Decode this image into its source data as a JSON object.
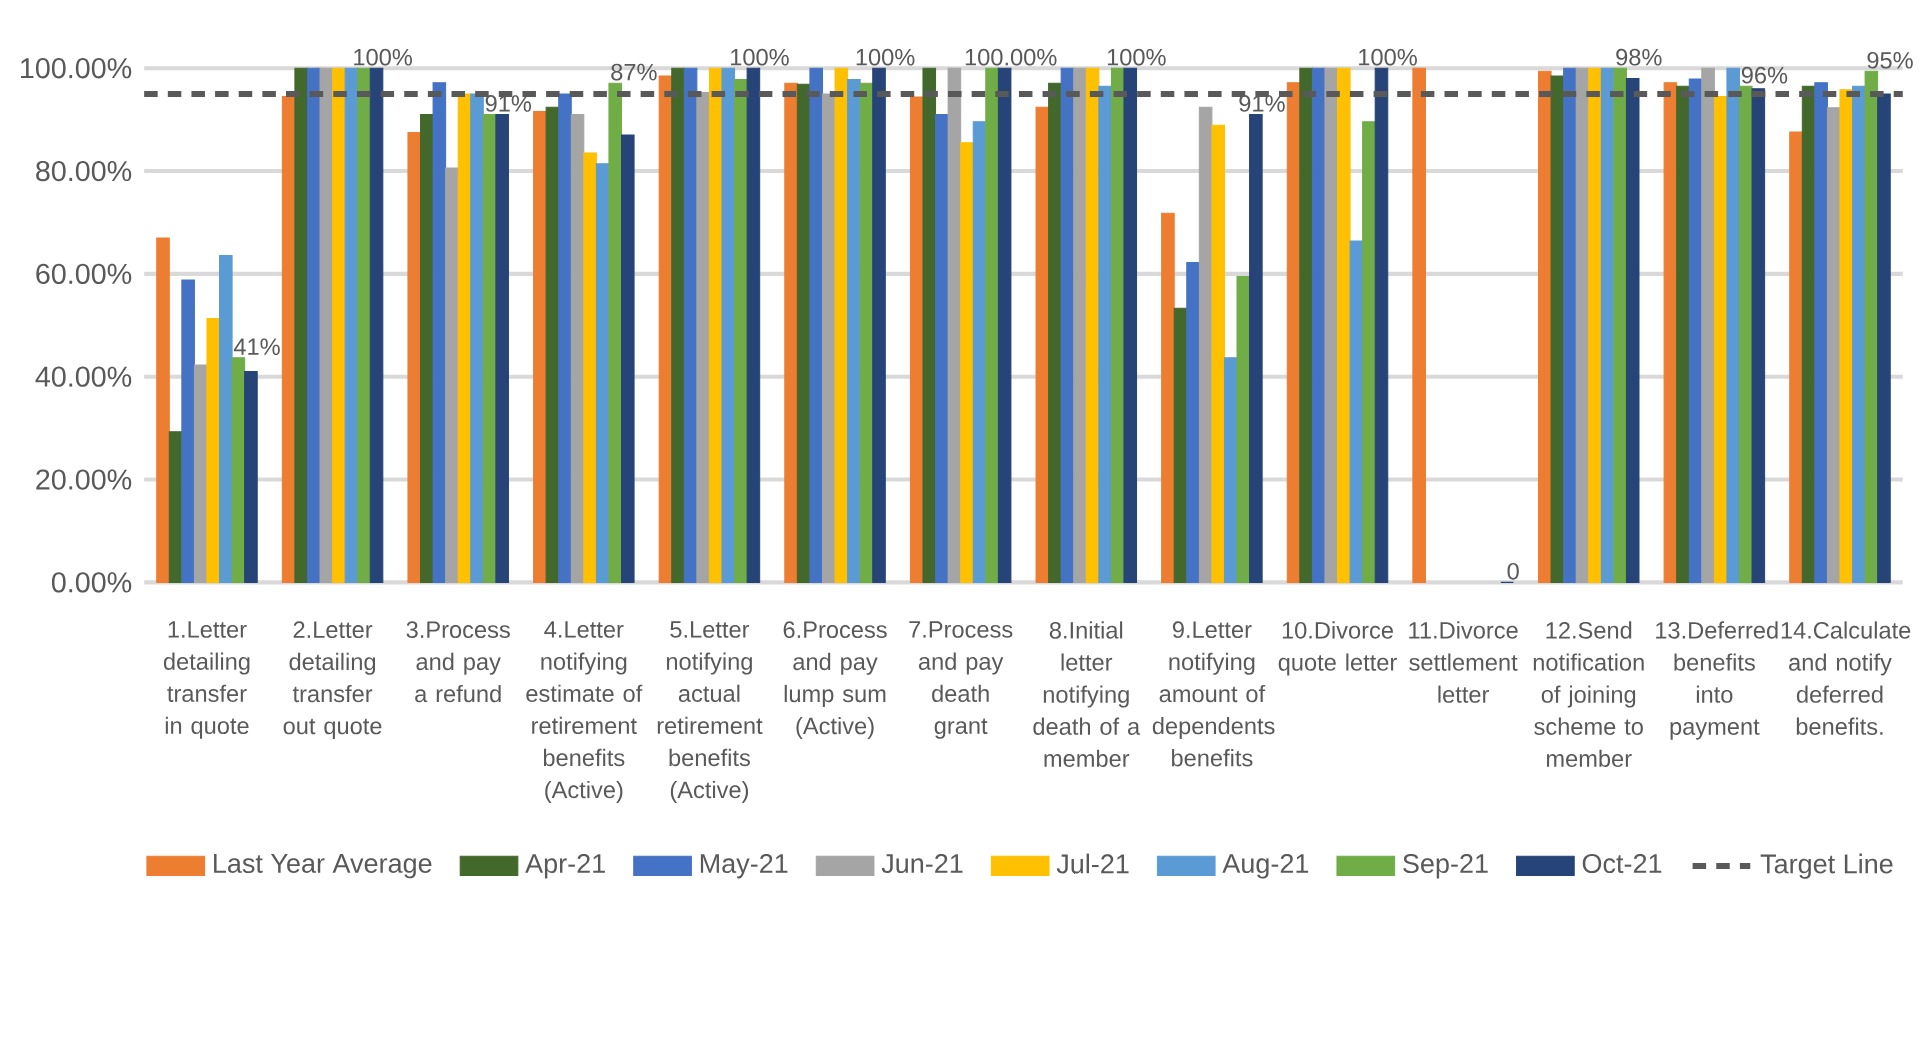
{
  "chart_data": {
    "type": "bar",
    "categories": [
      "1.Letter detailing transfer in quote",
      "2.Letter detailing transfer out quote",
      "3.Process and pay a refund",
      "4.Letter notifying estimate of retirement benefits (Active)",
      "5.Letter notifying actual retirement benefits (Active)",
      "6.Process and pay lump sum (Active)",
      "7.Process and pay death grant",
      "8.Initial letter notifying death of a member",
      "9.Letter notifying amount of dependents benefits",
      "10.Divorce quote letter",
      "11.Divorce settlement letter",
      "12.Send notification of joining scheme to member",
      "13.Deferred benefits into payment",
      "14.Calculate and notify deferred benefits."
    ],
    "series": [
      {
        "name": "Last Year Average",
        "color": "#ed7d31",
        "values": [
          67,
          94.5,
          87.5,
          91.6,
          98.5,
          97.1,
          94.4,
          92.4,
          71.8,
          97.2,
          100,
          99.4,
          97.2,
          87.6
        ]
      },
      {
        "name": "Apr-21",
        "color": "#43682b",
        "values": [
          29.3,
          100,
          91,
          92.4,
          100,
          96.9,
          100,
          97.1,
          53.3,
          100,
          null,
          98.5,
          96.5,
          96.5
        ]
      },
      {
        "name": "May-21",
        "color": "#4472c4",
        "values": [
          58.8,
          100,
          97.2,
          95,
          100,
          100,
          91,
          100,
          62.2,
          100,
          null,
          100,
          97.9,
          97.2
        ]
      },
      {
        "name": "Jun-21",
        "color": "#a5a5a5",
        "values": [
          42.3,
          100,
          80.6,
          91,
          95.3,
          95,
          100,
          100,
          92.4,
          100,
          null,
          100,
          100,
          92.3
        ]
      },
      {
        "name": "Jul-21",
        "color": "#ffc000",
        "values": [
          51.3,
          100,
          95,
          83.5,
          100,
          100,
          85.5,
          100,
          88.9,
          100,
          null,
          100,
          94.5,
          95.8
        ]
      },
      {
        "name": "Aug-21",
        "color": "#5b9bd5",
        "values": [
          63.6,
          100,
          95,
          81.4,
          100,
          97.8,
          89.6,
          96.5,
          43.7,
          66.4,
          null,
          100,
          100,
          96.5
        ]
      },
      {
        "name": "Sep-21",
        "color": "#70ad47",
        "values": [
          43.7,
          100,
          91,
          97.1,
          97.8,
          97.1,
          100,
          100,
          59.5,
          89.6,
          null,
          100,
          96.5,
          99.4
        ]
      },
      {
        "name": "Oct-21",
        "color": "#264478",
        "values": [
          41,
          100,
          91,
          87,
          100,
          100,
          100,
          100,
          91,
          100,
          0,
          98,
          96,
          95
        ],
        "value_labels": [
          "41%",
          "100%",
          "91%",
          "87%",
          "100%",
          "100%",
          "100.00%",
          "100%",
          "91%",
          "100%",
          "0",
          "98%",
          "96%",
          "95%"
        ]
      }
    ],
    "ref_lines": [
      {
        "axis": "y",
        "value": 95,
        "label": "Target Line",
        "color": "#595959",
        "line_style": "dashed"
      }
    ],
    "ylim": [
      0,
      100
    ],
    "yticks": [
      {
        "value": 0,
        "label": "0.00%"
      },
      {
        "value": 20,
        "label": "20.00%"
      },
      {
        "value": 40,
        "label": "40.00%"
      },
      {
        "value": 60,
        "label": "60.00%"
      },
      {
        "value": 80,
        "label": "80.00%"
      },
      {
        "value": 100,
        "label": "100.00%"
      }
    ],
    "grid": "y",
    "legend": "bottom"
  }
}
